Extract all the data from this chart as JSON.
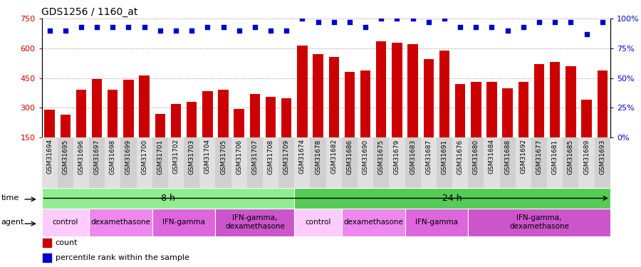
{
  "title": "GDS1256 / 1160_at",
  "samples": [
    "GSM31694",
    "GSM31695",
    "GSM31696",
    "GSM31697",
    "GSM31698",
    "GSM31699",
    "GSM31700",
    "GSM31701",
    "GSM31702",
    "GSM31703",
    "GSM31704",
    "GSM31705",
    "GSM31706",
    "GSM31707",
    "GSM31708",
    "GSM31709",
    "GSM31674",
    "GSM31678",
    "GSM31682",
    "GSM31686",
    "GSM31690",
    "GSM31675",
    "GSM31679",
    "GSM31683",
    "GSM31687",
    "GSM31691",
    "GSM31676",
    "GSM31680",
    "GSM31684",
    "GSM31688",
    "GSM31692",
    "GSM31677",
    "GSM31681",
    "GSM31685",
    "GSM31689",
    "GSM31693"
  ],
  "counts": [
    290,
    265,
    390,
    445,
    390,
    440,
    465,
    270,
    320,
    330,
    385,
    390,
    295,
    370,
    355,
    350,
    615,
    570,
    555,
    480,
    490,
    635,
    630,
    620,
    545,
    590,
    420,
    430,
    430,
    400,
    430,
    520,
    530,
    510,
    340,
    490
  ],
  "percentiles": [
    90,
    90,
    93,
    93,
    93,
    93,
    93,
    90,
    90,
    90,
    93,
    93,
    90,
    93,
    90,
    90,
    100,
    97,
    97,
    97,
    93,
    100,
    100,
    100,
    97,
    100,
    93,
    93,
    93,
    90,
    93,
    97,
    97,
    97,
    87,
    97
  ],
  "bar_color": "#cc0000",
  "dot_color": "#0000cc",
  "ylim_left": [
    150,
    750
  ],
  "ylim_right": [
    0,
    100
  ],
  "yticks_left": [
    150,
    300,
    450,
    600,
    750
  ],
  "yticks_right": [
    0,
    25,
    50,
    75,
    100
  ],
  "time_groups": [
    {
      "label": "8 h",
      "start": 0,
      "end": 16,
      "color": "#90ee90"
    },
    {
      "label": "24 h",
      "start": 16,
      "end": 36,
      "color": "#55cc55"
    }
  ],
  "agent_groups": [
    {
      "label": "control",
      "start": 0,
      "end": 3,
      "color": "#ffccff"
    },
    {
      "label": "dexamethasone",
      "start": 3,
      "end": 7,
      "color": "#ee88ee"
    },
    {
      "label": "IFN-gamma",
      "start": 7,
      "end": 11,
      "color": "#dd66dd"
    },
    {
      "label": "IFN-gamma,\ndexamethasone",
      "start": 11,
      "end": 16,
      "color": "#cc55cc"
    },
    {
      "label": "control",
      "start": 16,
      "end": 19,
      "color": "#ffccff"
    },
    {
      "label": "dexamethasone",
      "start": 19,
      "end": 23,
      "color": "#ee88ee"
    },
    {
      "label": "IFN-gamma",
      "start": 23,
      "end": 27,
      "color": "#dd66dd"
    },
    {
      "label": "IFN-gamma,\ndexamethasone",
      "start": 27,
      "end": 36,
      "color": "#cc55cc"
    }
  ]
}
